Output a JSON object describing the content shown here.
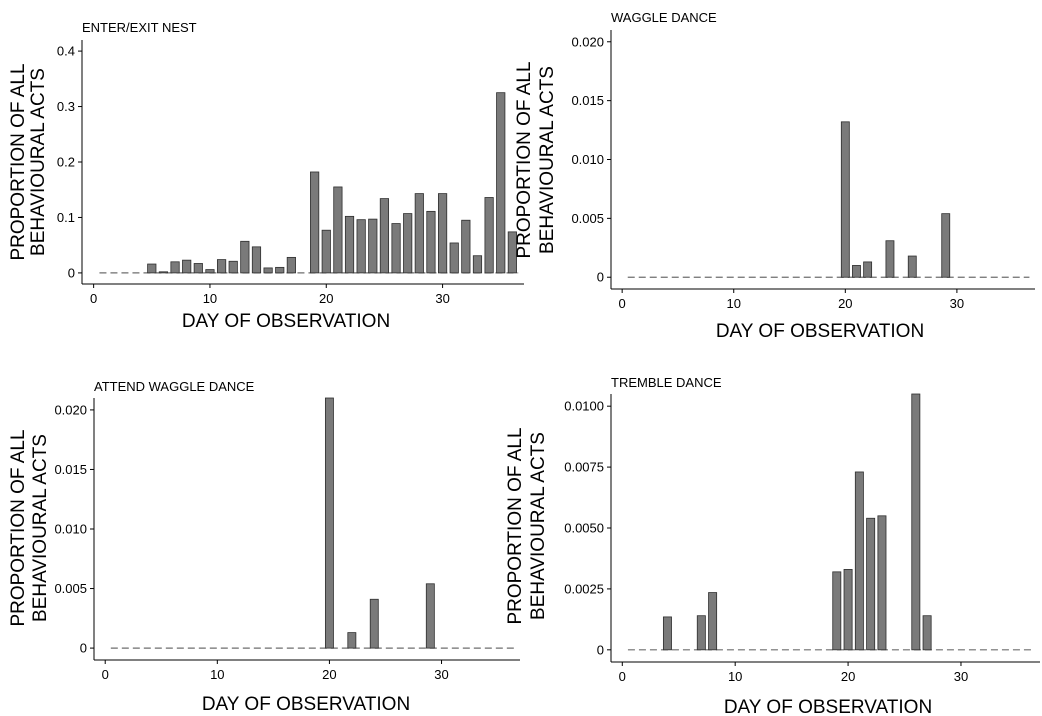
{
  "colors": {
    "bar_fill": "#7a7a7a",
    "bar_stroke": "#2e2e2e",
    "axis": "#000000",
    "zero_line": "#6e6e6e",
    "background": "#ffffff"
  },
  "chart_data": [
    {
      "type": "bar",
      "title": "ENTER/EXIT NEST",
      "xlabel": "DAY OF OBSERVATION",
      "ylabel": [
        "PROPORTION OF ALL",
        "BEHAVIOURAL ACTS"
      ],
      "xlim": [
        -1,
        37
      ],
      "ylim": [
        -0.02,
        0.42
      ],
      "xticks": [
        0,
        10,
        20,
        30
      ],
      "yticks": [
        0,
        0.1,
        0.2,
        0.3,
        0.4
      ],
      "ytick_labels": [
        "0",
        "0.1",
        "0.2",
        "0.3",
        "0.4"
      ],
      "grid": false,
      "zero_dashes_where_no_bar": true,
      "day_range": [
        1,
        36
      ],
      "x": [
        5,
        6,
        7,
        8,
        9,
        10,
        11,
        12,
        13,
        14,
        15,
        16,
        17,
        19,
        20,
        21,
        22,
        23,
        24,
        25,
        26,
        27,
        28,
        29,
        30,
        31,
        32,
        33,
        34,
        35,
        36
      ],
      "values": [
        0.016,
        0.002,
        0.02,
        0.023,
        0.017,
        0.006,
        0.024,
        0.021,
        0.057,
        0.047,
        0.009,
        0.01,
        0.028,
        0.182,
        0.077,
        0.155,
        0.102,
        0.096,
        0.097,
        0.134,
        0.089,
        0.107,
        0.143,
        0.111,
        0.143,
        0.054,
        0.095,
        0.031,
        0.136,
        0.325,
        0.074
      ]
    },
    {
      "type": "bar",
      "title": "WAGGLE DANCE",
      "xlabel": "DAY OF OBSERVATION",
      "ylabel": [
        "PROPORTION OF ALL",
        "BEHAVIOURAL ACTS"
      ],
      "xlim": [
        -1,
        37
      ],
      "ylim": [
        -0.001,
        0.021
      ],
      "xticks": [
        0,
        10,
        20,
        30
      ],
      "yticks": [
        0,
        0.005,
        0.01,
        0.015,
        0.02
      ],
      "ytick_labels": [
        "0",
        "0.005",
        "0.010",
        "0.015",
        "0.020"
      ],
      "grid": false,
      "zero_dashes_where_no_bar": true,
      "day_range": [
        1,
        36
      ],
      "x": [
        20,
        21,
        22,
        24,
        26,
        29
      ],
      "values": [
        0.0132,
        0.001,
        0.0013,
        0.0031,
        0.0018,
        0.0054
      ]
    },
    {
      "type": "bar",
      "title": "ATTEND WAGGLE DANCE",
      "xlabel": "DAY OF OBSERVATION",
      "ylabel": [
        "PROPORTION OF ALL",
        "BEHAVIOURAL ACTS"
      ],
      "xlim": [
        -1,
        37
      ],
      "ylim": [
        -0.001,
        0.021
      ],
      "xticks": [
        0,
        10,
        20,
        30
      ],
      "yticks": [
        0,
        0.005,
        0.01,
        0.015,
        0.02
      ],
      "ytick_labels": [
        "0",
        "0.005",
        "0.010",
        "0.015",
        "0.020"
      ],
      "grid": false,
      "zero_dashes_where_no_bar": true,
      "day_range": [
        1,
        36
      ],
      "x": [
        20,
        22,
        24,
        29
      ],
      "values": [
        0.021,
        0.0013,
        0.0041,
        0.0054
      ]
    },
    {
      "type": "bar",
      "title": "TREMBLE DANCE",
      "xlabel": "DAY OF OBSERVATION",
      "ylabel": [
        "PROPORTION OF ALL",
        "BEHAVIOURAL ACTS"
      ],
      "xlim": [
        -1,
        37
      ],
      "ylim": [
        -0.0005,
        0.0105
      ],
      "xticks": [
        0,
        10,
        20,
        30
      ],
      "yticks": [
        0,
        0.0025,
        0.005,
        0.0075,
        0.01
      ],
      "ytick_labels": [
        "0",
        "0.0025",
        "0.0050",
        "0.0075",
        "0.0100"
      ],
      "grid": false,
      "zero_dashes_where_no_bar": true,
      "day_range": [
        1,
        36
      ],
      "x": [
        4,
        7,
        8,
        19,
        20,
        21,
        22,
        23,
        26,
        27
      ],
      "values": [
        0.00135,
        0.0014,
        0.00235,
        0.0032,
        0.0033,
        0.0073,
        0.0054,
        0.0055,
        0.0105,
        0.0014
      ]
    }
  ]
}
